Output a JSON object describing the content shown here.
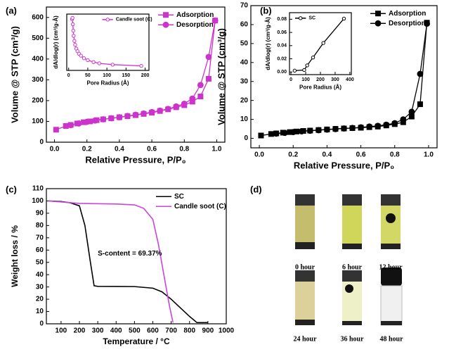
{
  "chart_data": [
    {
      "type": "line",
      "panel_label": "(a)",
      "xlabel": "Relative Pressure, P/P₀",
      "ylabel": "Volume @ STP (cm³/g)",
      "xlim": [
        -0.05,
        1.05
      ],
      "ylim": [
        0,
        650
      ],
      "xticks": [
        {
          "value": 0,
          "label": "0.0"
        },
        0.2,
        0.4,
        0.6,
        0.8,
        {
          "value": 1,
          "label": "1.0"
        }
      ],
      "yticks": [
        0,
        100,
        200,
        300,
        400,
        500,
        600
      ],
      "legend": "upper right",
      "series": [
        {
          "name": "Adsorption",
          "color": "#cc33cc",
          "marker": "square",
          "x": [
            0.01,
            0.07,
            0.1,
            0.14,
            0.18,
            0.22,
            0.26,
            0.3,
            0.35,
            0.4,
            0.45,
            0.5,
            0.55,
            0.6,
            0.65,
            0.7,
            0.75,
            0.8,
            0.85,
            0.9,
            0.95,
            0.99
          ],
          "values": [
            60,
            78,
            83,
            90,
            96,
            100,
            106,
            110,
            115,
            120,
            125,
            130,
            136,
            142,
            150,
            158,
            168,
            178,
            195,
            220,
            305,
            585
          ]
        },
        {
          "name": "Desorption",
          "color": "#cc33cc",
          "marker": "circle",
          "x": [
            0.99,
            0.95,
            0.9,
            0.85,
            0.8,
            0.75,
            0.7,
            0.65,
            0.6,
            0.55,
            0.5,
            0.45,
            0.4,
            0.35,
            0.3,
            0.25,
            0.2,
            0.15,
            0.1
          ],
          "values": [
            585,
            410,
            275,
            210,
            185,
            172,
            160,
            152,
            145,
            138,
            132,
            126,
            120,
            115,
            110,
            104,
            98,
            90,
            82
          ]
        }
      ]
    },
    {
      "type": "line",
      "xlabel": "Pore Radius (Å)",
      "ylabel": "dA/dlog(r) (cm³/g-Å)",
      "xlim": [
        -5,
        210
      ],
      "ylim": [
        0,
        440
      ],
      "xticks": [
        0,
        50,
        100,
        150,
        200
      ],
      "legend": "upper right",
      "series": [
        {
          "name": "Candle soot (C)",
          "color": "#cc33cc",
          "marker": "circle-open",
          "x": [
            9,
            10,
            11,
            12,
            13,
            15,
            17,
            20,
            23,
            27,
            32,
            40,
            50,
            65,
            80,
            115,
            190
          ],
          "values": [
            400,
            410,
            360,
            310,
            270,
            230,
            200,
            170,
            150,
            130,
            115,
            95,
            80,
            65,
            55,
            45,
            35
          ]
        }
      ]
    },
    {
      "type": "line",
      "panel_label": "(b)",
      "xlabel": "Relative Pressure, P/P₀",
      "ylabel": "Volume @ STP (cm³/g)",
      "xlim": [
        -0.05,
        1.05
      ],
      "ylim": [
        -5,
        70
      ],
      "xticks": [
        {
          "value": 0,
          "label": "0.0"
        },
        0.2,
        0.4,
        0.6,
        0.8,
        {
          "value": 1,
          "label": "1.0"
        }
      ],
      "yticks": [
        0,
        10,
        20,
        30,
        40,
        50,
        60,
        70
      ],
      "legend": "upper right",
      "series": [
        {
          "name": "Adsorption",
          "color": "#000000",
          "marker": "square",
          "x": [
            0.01,
            0.07,
            0.1,
            0.14,
            0.18,
            0.22,
            0.26,
            0.3,
            0.35,
            0.4,
            0.45,
            0.5,
            0.55,
            0.6,
            0.65,
            0.7,
            0.75,
            0.8,
            0.85,
            0.9,
            0.95,
            0.99
          ],
          "values": [
            1.5,
            2.3,
            2.6,
            3,
            3.3,
            3.6,
            3.9,
            4.1,
            4.4,
            4.7,
            5,
            5.2,
            5.4,
            5.6,
            5.9,
            6.2,
            6.8,
            7.5,
            8.5,
            11.5,
            18,
            61
          ]
        },
        {
          "name": "Desorption",
          "color": "#000000",
          "marker": "circle",
          "x": [
            0.99,
            0.95,
            0.9,
            0.85,
            0.8,
            0.75,
            0.7,
            0.65,
            0.6,
            0.55,
            0.5,
            0.45,
            0.4,
            0.35,
            0.3,
            0.25,
            0.2,
            0.15,
            0.1
          ],
          "values": [
            60.5,
            34,
            14,
            10,
            8,
            7.2,
            6.6,
            6.2,
            5.8,
            5.5,
            5.2,
            4.9,
            4.6,
            4.3,
            4,
            3.7,
            3.3,
            2.9,
            2.5
          ]
        }
      ]
    },
    {
      "type": "line",
      "xlabel": "Pore Radius (Å)",
      "ylabel": "dA/dlog(r) (cm³/g-Å)",
      "xlim": [
        -10,
        410
      ],
      "ylim": [
        -0.004,
        0.09
      ],
      "xticks": [
        0,
        100,
        200,
        300,
        400
      ],
      "yticks": [
        {
          "value": 0,
          "label": "0.00"
        },
        0.02,
        0.04,
        0.06,
        0.08
      ],
      "legend": "upper left",
      "series": [
        {
          "name": "SC",
          "color": "#000000",
          "marker": "circle-open",
          "x": [
            25,
            90,
            110,
            150,
            220,
            360
          ],
          "values": [
            0.002,
            0.003,
            0.01,
            0.022,
            0.044,
            0.081
          ]
        }
      ]
    },
    {
      "type": "line",
      "panel_label": "(c)",
      "xlabel": "Temperature / °C",
      "ylabel": "Weight loss / %",
      "xlim": [
        20,
        1000
      ],
      "ylim": [
        0,
        110
      ],
      "xticks": [
        100,
        200,
        300,
        400,
        500,
        600,
        700,
        800,
        900,
        1000
      ],
      "yticks": [
        0,
        10,
        20,
        30,
        40,
        50,
        60,
        70,
        80,
        90,
        100,
        110
      ],
      "legend": "upper right",
      "annotation": "S-content = 69.37%",
      "series": [
        {
          "name": "SC",
          "color": "#000000",
          "marker": "none",
          "x": [
            30,
            100,
            150,
            200,
            230,
            260,
            280,
            300,
            400,
            500,
            600,
            650,
            700,
            750,
            800,
            840,
            900
          ],
          "values": [
            100,
            99.5,
            98.5,
            96,
            80,
            50,
            31,
            30.5,
            30.4,
            30.3,
            29,
            26,
            20,
            13,
            6,
            1,
            1
          ]
        },
        {
          "name": "Candle soot (C)",
          "color": "#cc44dd",
          "marker": "none",
          "x": [
            30,
            200,
            400,
            500,
            550,
            600,
            630,
            660,
            690,
            710
          ],
          "values": [
            100,
            98,
            97.5,
            96.8,
            94,
            85,
            65,
            40,
            15,
            1
          ]
        }
      ]
    }
  ],
  "photos": {
    "panel_label": "(d)",
    "labels": [
      "0 hour",
      "6 hour",
      "12 hour",
      "24 hour",
      "36 hour",
      "48 hour"
    ]
  }
}
